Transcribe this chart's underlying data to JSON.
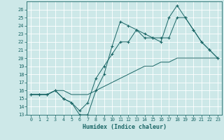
{
  "xlabel": "Humidex (Indice chaleur)",
  "bg_color": "#cde8e8",
  "grid_color": "#b0d8d8",
  "line_color": "#1a6666",
  "xlim": [
    -0.5,
    23.5
  ],
  "ylim": [
    13,
    27
  ],
  "yticks": [
    13,
    14,
    15,
    16,
    17,
    18,
    19,
    20,
    21,
    22,
    23,
    24,
    25,
    26
  ],
  "xticks": [
    0,
    1,
    2,
    3,
    4,
    5,
    6,
    7,
    8,
    9,
    10,
    11,
    12,
    13,
    14,
    15,
    16,
    17,
    18,
    19,
    20,
    21,
    22,
    23
  ],
  "line1_y": [
    15.5,
    15.5,
    15.5,
    16.0,
    16.0,
    15.5,
    15.5,
    15.5,
    16.0,
    16.5,
    17.0,
    17.5,
    18.0,
    18.5,
    19.0,
    19.0,
    19.5,
    19.5,
    20.0,
    20.0,
    20.0,
    20.0,
    20.0,
    20.0
  ],
  "line2_y": [
    15.5,
    15.5,
    15.5,
    16.0,
    15.0,
    14.5,
    13.5,
    14.5,
    17.5,
    19.0,
    20.5,
    22.0,
    22.0,
    23.5,
    23.0,
    22.5,
    22.5,
    22.5,
    25.0,
    25.0,
    23.5,
    22.0,
    21.0,
    20.0
  ],
  "line3_y": [
    15.5,
    15.5,
    15.5,
    16.0,
    15.0,
    14.5,
    13.0,
    13.0,
    16.0,
    18.0,
    21.5,
    24.5,
    24.0,
    23.5,
    22.5,
    22.5,
    22.0,
    25.0,
    26.5,
    25.0,
    23.5,
    22.0,
    21.0,
    20.0
  ]
}
